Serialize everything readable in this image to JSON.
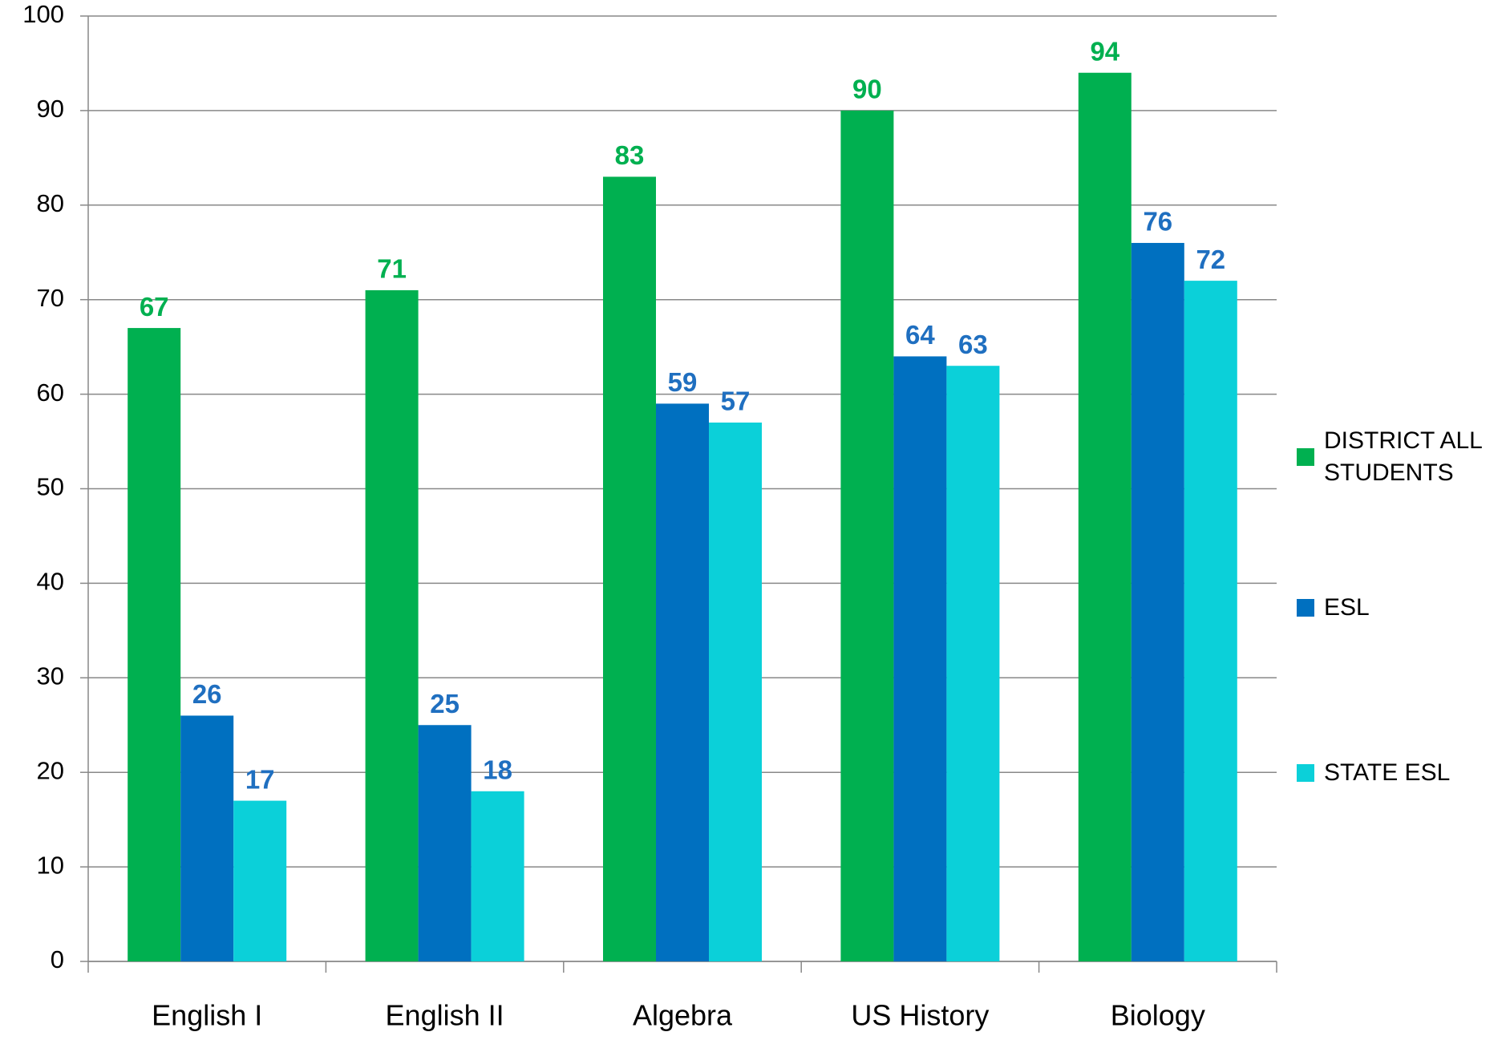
{
  "chart_data": {
    "type": "bar",
    "categories": [
      "English I",
      "English II",
      "Algebra",
      "US History",
      "Biology"
    ],
    "series": [
      {
        "name": "DISTRICT ALL STUDENTS",
        "color": "#00b050",
        "label_color": "#00b050",
        "values": [
          67,
          71,
          83,
          90,
          94
        ]
      },
      {
        "name": "ESL",
        "color": "#0070c0",
        "label_color": "#1f6fc0",
        "values": [
          26,
          25,
          59,
          64,
          76
        ]
      },
      {
        "name": "STATE ESL",
        "color": "#0bd0d9",
        "label_color": "#1f6fc0",
        "values": [
          17,
          18,
          57,
          63,
          72
        ]
      }
    ],
    "ylim": [
      0,
      100
    ],
    "yticks": [
      0,
      10,
      20,
      30,
      40,
      50,
      60,
      70,
      80,
      90,
      100
    ],
    "grid": true,
    "legend": "right"
  }
}
